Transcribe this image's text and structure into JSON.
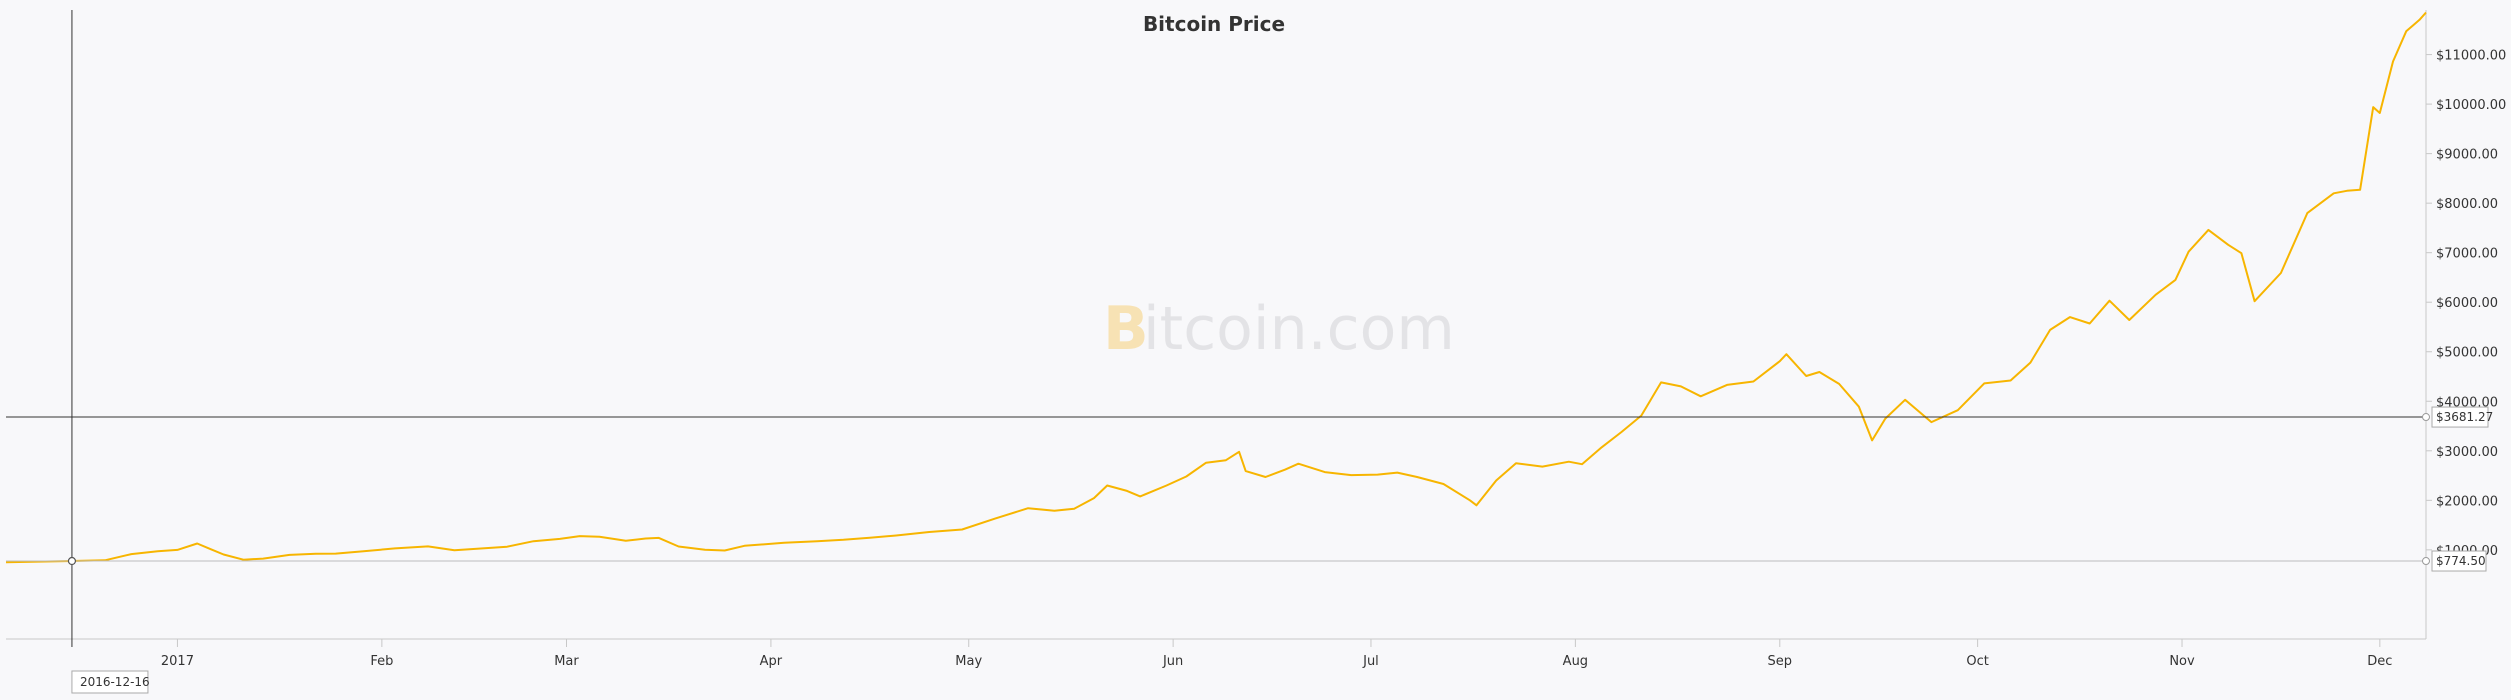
{
  "colors": {
    "series": "#f7b500",
    "axis": "#c8c8c8",
    "crosshair": "#333333",
    "watermark_b": "#f7e2b4",
    "watermark_text": "#e3e3e6"
  },
  "watermark": {
    "b": "B",
    "rest": "itcoin.com"
  },
  "crosshair": {
    "date_label": "2016-12-16",
    "price_label": "$3681.27",
    "low_label": "$774.50",
    "price_value": 3681.27,
    "low_value": 774.5,
    "date_value": "2016-12-16"
  },
  "chart_data": {
    "type": "line",
    "title": "Bitcoin Price",
    "xlabel": "",
    "ylabel": "",
    "xlim": [
      "2016-12-06",
      "2017-12-08"
    ],
    "ylim": [
      -800,
      11900
    ],
    "y_ticks": [
      {
        "value": 1000,
        "label": "$1000.00"
      },
      {
        "value": 2000,
        "label": "$2000.00"
      },
      {
        "value": 3000,
        "label": "$3000.00"
      },
      {
        "value": 4000,
        "label": "$4000.00"
      },
      {
        "value": 5000,
        "label": "$5000.00"
      },
      {
        "value": 6000,
        "label": "$6000.00"
      },
      {
        "value": 7000,
        "label": "$7000.00"
      },
      {
        "value": 8000,
        "label": "$8000.00"
      },
      {
        "value": 9000,
        "label": "$9000.00"
      },
      {
        "value": 10000,
        "label": "$10000.00"
      },
      {
        "value": 11000,
        "label": "$11000.00"
      }
    ],
    "x_ticks": [
      {
        "date": "2017-01-01",
        "label": "2017"
      },
      {
        "date": "2017-02-01",
        "label": "Feb"
      },
      {
        "date": "2017-03-01",
        "label": "Mar"
      },
      {
        "date": "2017-04-01",
        "label": "Apr"
      },
      {
        "date": "2017-05-01",
        "label": "May"
      },
      {
        "date": "2017-06-01",
        "label": "Jun"
      },
      {
        "date": "2017-07-01",
        "label": "Jul"
      },
      {
        "date": "2017-08-01",
        "label": "Aug"
      },
      {
        "date": "2017-09-01",
        "label": "Sep"
      },
      {
        "date": "2017-10-01",
        "label": "Oct"
      },
      {
        "date": "2017-11-01",
        "label": "Nov"
      },
      {
        "date": "2017-12-01",
        "label": "Dec"
      }
    ],
    "grid": false,
    "legend": "none",
    "series": [
      {
        "x": [
          "2016-12-06",
          "2016-12-16",
          "2016-12-21",
          "2016-12-25",
          "2016-12-29",
          "2017-01-01",
          "2017-01-04",
          "2017-01-06",
          "2017-01-08",
          "2017-01-11",
          "2017-01-14",
          "2017-01-18",
          "2017-01-22",
          "2017-01-25",
          "2017-01-29",
          "2017-02-03",
          "2017-02-08",
          "2017-02-12",
          "2017-02-16",
          "2017-02-20",
          "2017-02-24",
          "2017-02-28",
          "2017-03-03",
          "2017-03-06",
          "2017-03-10",
          "2017-03-13",
          "2017-03-15",
          "2017-03-18",
          "2017-03-22",
          "2017-03-25",
          "2017-03-28",
          "2017-04-03",
          "2017-04-08",
          "2017-04-12",
          "2017-04-16",
          "2017-04-20",
          "2017-04-25",
          "2017-04-30",
          "2017-05-05",
          "2017-05-10",
          "2017-05-14",
          "2017-05-17",
          "2017-05-20",
          "2017-05-22",
          "2017-05-25",
          "2017-05-27",
          "2017-05-31",
          "2017-06-03",
          "2017-06-06",
          "2017-06-09",
          "2017-06-11",
          "2017-06-12",
          "2017-06-15",
          "2017-06-18",
          "2017-06-20",
          "2017-06-24",
          "2017-06-28",
          "2017-07-02",
          "2017-07-05",
          "2017-07-08",
          "2017-07-12",
          "2017-07-16",
          "2017-07-17",
          "2017-07-20",
          "2017-07-23",
          "2017-07-27",
          "2017-07-31",
          "2017-08-02",
          "2017-08-05",
          "2017-08-08",
          "2017-08-11",
          "2017-08-14",
          "2017-08-17",
          "2017-08-20",
          "2017-08-24",
          "2017-08-28",
          "2017-09-01",
          "2017-09-02",
          "2017-09-05",
          "2017-09-07",
          "2017-09-10",
          "2017-09-13",
          "2017-09-15",
          "2017-09-17",
          "2017-09-20",
          "2017-09-24",
          "2017-09-28",
          "2017-10-02",
          "2017-10-06",
          "2017-10-09",
          "2017-10-12",
          "2017-10-15",
          "2017-10-18",
          "2017-10-21",
          "2017-10-24",
          "2017-10-28",
          "2017-10-31",
          "2017-11-02",
          "2017-11-05",
          "2017-11-08",
          "2017-11-10",
          "2017-11-12",
          "2017-11-16",
          "2017-11-20",
          "2017-11-24",
          "2017-11-26",
          "2017-11-28",
          "2017-11-29",
          "2017-11-30",
          "2017-12-01",
          "2017-12-03",
          "2017-12-05",
          "2017-12-07",
          "2017-12-08"
        ],
        "y": [
          750,
          774.5,
          789,
          914,
          971,
          998,
          1128,
          1015,
          907,
          801,
          823,
          899,
          921,
          925,
          968,
          1030,
          1069,
          993,
          1028,
          1063,
          1175,
          1222,
          1278,
          1265,
          1182,
          1230,
          1241,
          1068,
          1002,
          987,
          1082,
          1143,
          1175,
          1202,
          1243,
          1290,
          1360,
          1410,
          1630,
          1840,
          1790,
          1830,
          2045,
          2300,
          2190,
          2080,
          2300,
          2480,
          2760,
          2810,
          2980,
          2590,
          2470,
          2620,
          2740,
          2570,
          2510,
          2520,
          2560,
          2470,
          2330,
          2000,
          1900,
          2400,
          2750,
          2680,
          2780,
          2730,
          3070,
          3380,
          3710,
          4380,
          4300,
          4100,
          4330,
          4400,
          4810,
          4950,
          4510,
          4590,
          4350,
          3890,
          3210,
          3650,
          4030,
          3580,
          3820,
          4360,
          4420,
          4780,
          5440,
          5700,
          5570,
          6030,
          5640,
          6150,
          6450,
          7020,
          7460,
          7160,
          6990,
          6020,
          6590,
          7800,
          8200,
          8250,
          8270,
          9110,
          9940,
          9820,
          10860,
          11470,
          11700,
          11850
        ]
      }
    ]
  }
}
